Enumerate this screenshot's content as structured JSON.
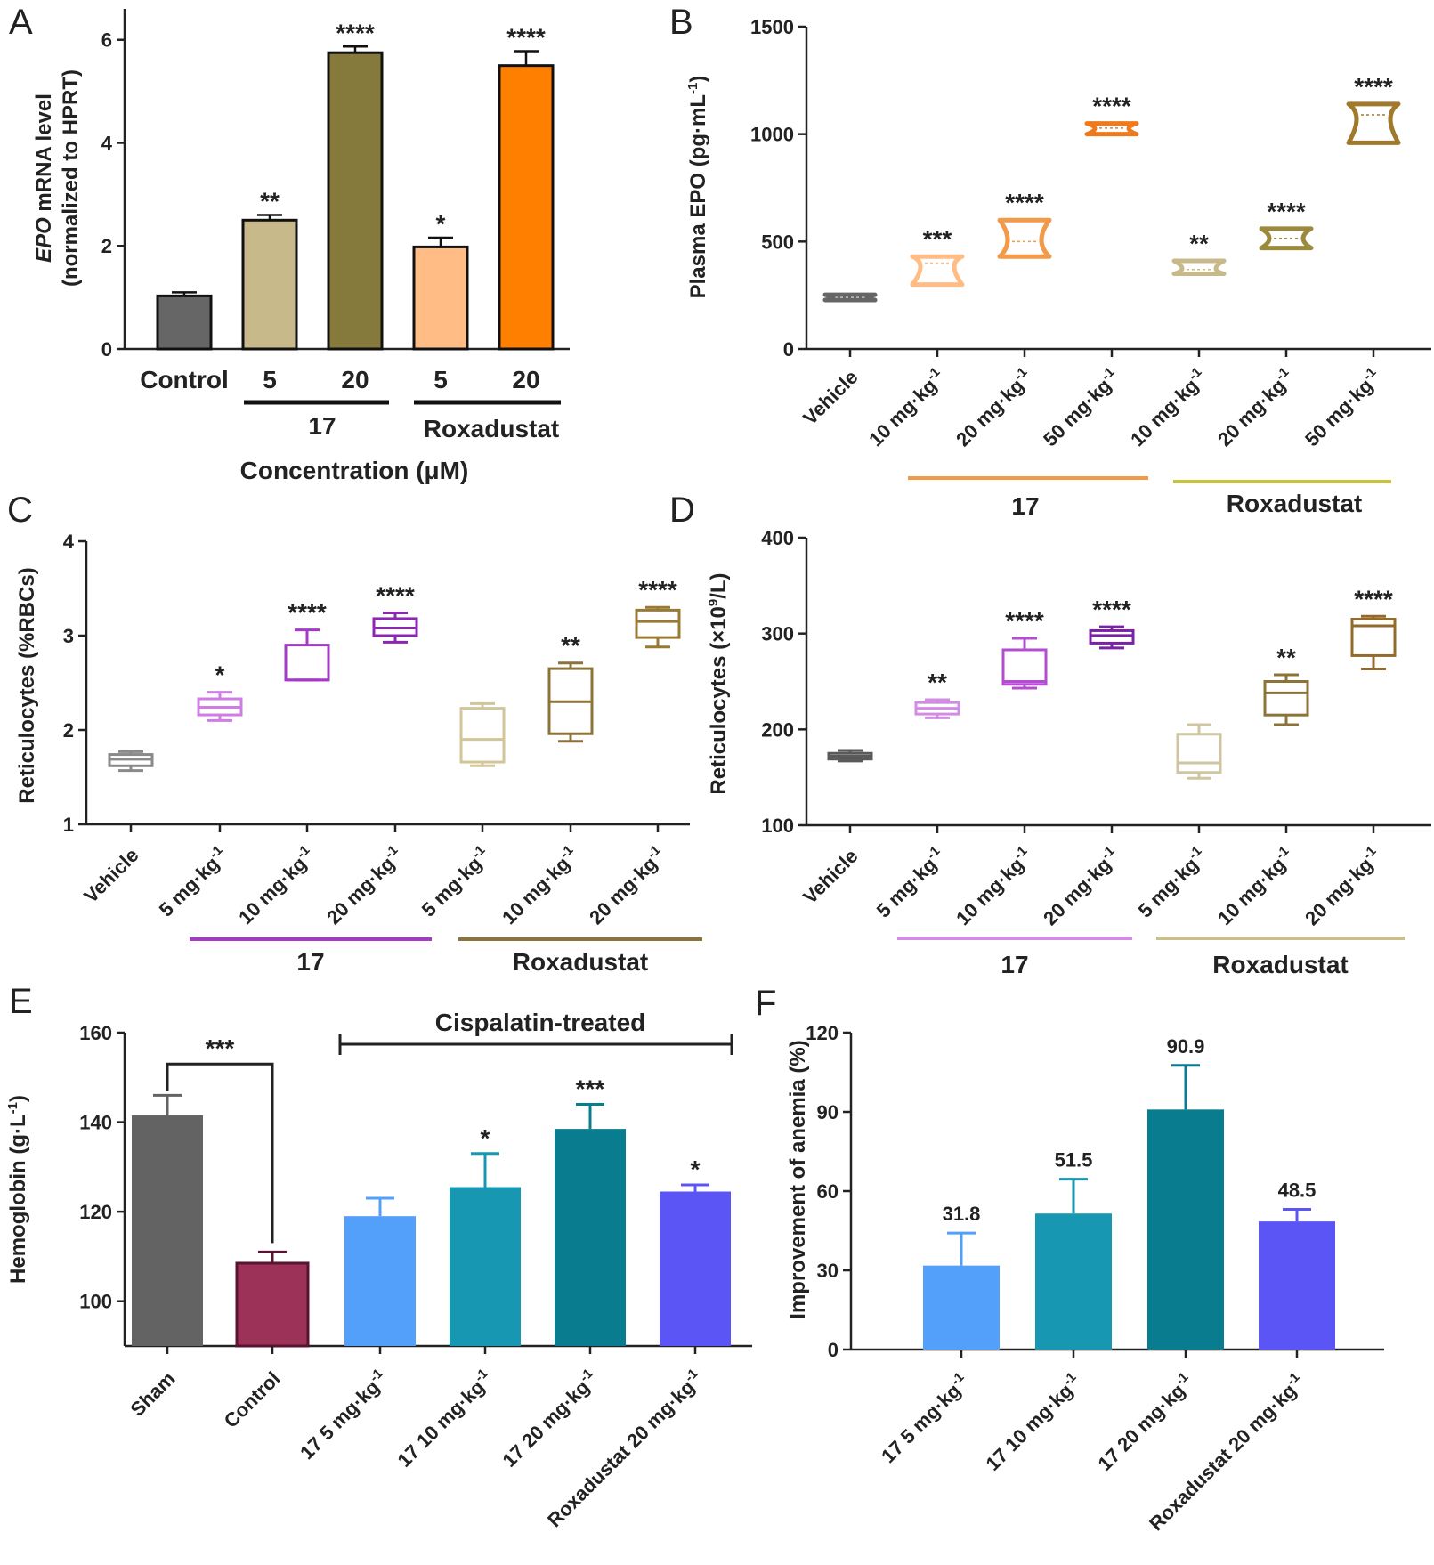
{
  "colors": {
    "control_gray": "#666666",
    "c17_5_uM": "#c8b98a",
    "c17_20_uM": "#857a3b",
    "rox_5_uM": "#ffbd85",
    "rox_20_uM": "#ff7f00",
    "epo17": "#f29a4a",
    "epoRox": "#c7c33a",
    "retic17": "#a43ac6",
    "reticRox": "#8c7439",
    "d17": "#d38ce3",
    "dRox": "#c9bf8e",
    "e_sham": "#636363",
    "e_control": "#9c3257",
    "e_17_5": "#52a0fa",
    "e_17_10": "#1797b1",
    "e_17_20": "#0a7c8f",
    "e_rox20": "#5b55f5"
  },
  "chart_data": [
    {
      "panel": "A",
      "type": "bar",
      "categories": [
        "Control",
        "5",
        "20",
        "5",
        "20"
      ],
      "values": [
        1.03,
        2.5,
        5.75,
        1.98,
        5.5
      ],
      "errors": [
        0.07,
        0.1,
        0.12,
        0.18,
        0.28
      ],
      "significance": [
        "",
        "**",
        "****",
        "*",
        "****"
      ],
      "ylabel_italic": "EPO",
      "ylabel_rest": " mRNA level",
      "ylabel_line2": "(normalized to HPRT)",
      "ylim": [
        0,
        6.6
      ],
      "yticks": [
        "0",
        "2",
        "4",
        "6"
      ],
      "xlabel": "Concentration (μM)",
      "groups": [
        "17",
        "Roxadustat"
      ]
    },
    {
      "panel": "B",
      "type": "violin",
      "ylabel": "Plasma EPO (pg·mL",
      "ylabel_sup": "-1",
      "ylabel_end": ")",
      "ylim": [
        0,
        1500
      ],
      "yticks": [
        "0",
        "500",
        "1000",
        "1500"
      ],
      "categories": [
        "Vehicle",
        "10 mg·kg",
        "20 mg·kg",
        "50 mg·kg",
        "10 mg·kg",
        "20 mg·kg",
        "50 mg·kg"
      ],
      "category_sup": [
        "",
        "-1",
        "-1",
        "-1",
        "-1",
        "-1",
        "-1"
      ],
      "ranges": [
        [
          228,
          252
        ],
        [
          300,
          430
        ],
        [
          430,
          600
        ],
        [
          1000,
          1050
        ],
        [
          350,
          410
        ],
        [
          470,
          560
        ],
        [
          960,
          1140
        ]
      ],
      "medians": [
        240,
        400,
        500,
        1028,
        370,
        515,
        1090
      ],
      "significance": [
        "",
        "***",
        "****",
        "****",
        "**",
        "****",
        "****"
      ],
      "groups": [
        "17",
        "Roxadustat"
      ]
    },
    {
      "panel": "C",
      "type": "box",
      "ylabel": "Reticulocytes (%RBCs)",
      "ylim": [
        1,
        4
      ],
      "yticks": [
        "1",
        "2",
        "3",
        "4"
      ],
      "categories": [
        "Vehicle",
        "5 mg·kg",
        "10 mg·kg",
        "20 mg·kg",
        "5 mg·kg",
        "10 mg·kg",
        "20 mg·kg"
      ],
      "category_sup": [
        "",
        "-1",
        "-1",
        "-1",
        "-1",
        "-1",
        "-1"
      ],
      "boxes": [
        [
          1.57,
          1.62,
          1.69,
          1.74,
          1.77
        ],
        [
          2.1,
          2.16,
          2.24,
          2.33,
          2.4
        ],
        [
          2.53,
          2.53,
          2.53,
          2.9,
          3.06
        ],
        [
          2.93,
          3.0,
          3.08,
          3.18,
          3.24
        ],
        [
          1.62,
          1.66,
          1.9,
          2.23,
          2.28
        ],
        [
          1.88,
          1.96,
          2.3,
          2.65,
          2.71
        ],
        [
          2.88,
          2.98,
          3.15,
          3.27,
          3.3
        ]
      ],
      "significance": [
        "",
        "*",
        "****",
        "****",
        "",
        "**",
        "****"
      ],
      "groups": [
        "17",
        "Roxadustat"
      ]
    },
    {
      "panel": "D",
      "type": "box",
      "ylabel": "Reticulocytes (×10",
      "ylabel_sup": "9",
      "ylabel_end": "/L)",
      "ylim": [
        100,
        400
      ],
      "yticks": [
        "100",
        "200",
        "300",
        "400"
      ],
      "categories": [
        "Vehicle",
        "5 mg·kg",
        "10 mg·kg",
        "20 mg·kg",
        "5 mg·kg",
        "10 mg·kg",
        "20 mg·kg"
      ],
      "category_sup": [
        "",
        "-1",
        "-1",
        "-1",
        "-1",
        "-1",
        "-1"
      ],
      "boxes": [
        [
          167,
          169,
          172,
          175,
          178
        ],
        [
          212,
          216,
          222,
          228,
          231
        ],
        [
          243,
          247,
          250,
          283,
          295
        ],
        [
          285,
          290,
          298,
          303,
          307
        ],
        [
          149,
          155,
          165,
          195,
          205
        ],
        [
          205,
          215,
          238,
          250,
          257
        ],
        [
          263,
          277,
          308,
          315,
          318
        ]
      ],
      "significance": [
        "",
        "**",
        "****",
        "****",
        "",
        "**",
        "****"
      ],
      "groups": [
        "17",
        "Roxadustat"
      ]
    },
    {
      "panel": "E",
      "type": "bar",
      "ylabel": "Hemoglobin (g·L",
      "ylabel_sup": "-1",
      "ylabel_end": ")",
      "ylim": [
        90,
        160
      ],
      "yticks": [
        "100",
        "120",
        "140",
        "160"
      ],
      "categories": [
        "Sham",
        "Control",
        "17 5 mg·kg",
        "17 10 mg·kg",
        "17 20 mg·kg",
        "Roxadustat 20 mg·kg"
      ],
      "category_sup": [
        "",
        "",
        "-1",
        "-1",
        "-1",
        "-1"
      ],
      "values": [
        141.5,
        108.5,
        119,
        125.5,
        138.5,
        124.5
      ],
      "errors": [
        4.5,
        2.5,
        4,
        7.5,
        5.5,
        1.5
      ],
      "significance": [
        "",
        "",
        "",
        "*",
        "***",
        "*"
      ],
      "bracket_label": "***",
      "group_label": "Cispalatin-treated"
    },
    {
      "panel": "F",
      "type": "bar",
      "ylabel": "Improvement of anemia (%)",
      "ylim": [
        0,
        120
      ],
      "yticks": [
        "0",
        "30",
        "60",
        "90",
        "120"
      ],
      "categories": [
        "17 5 mg·kg",
        "17 10 mg·kg",
        "17 20 mg·kg",
        "Roxadustat 20 mg·kg"
      ],
      "category_sup": [
        "-1",
        "-1",
        "-1",
        "-1"
      ],
      "values": [
        31.8,
        51.5,
        90.9,
        48.5
      ],
      "errors": [
        12.3,
        13,
        16.7,
        4.6
      ],
      "value_labels": [
        "31.8",
        "51.5",
        "90.9",
        "48.5"
      ]
    }
  ]
}
